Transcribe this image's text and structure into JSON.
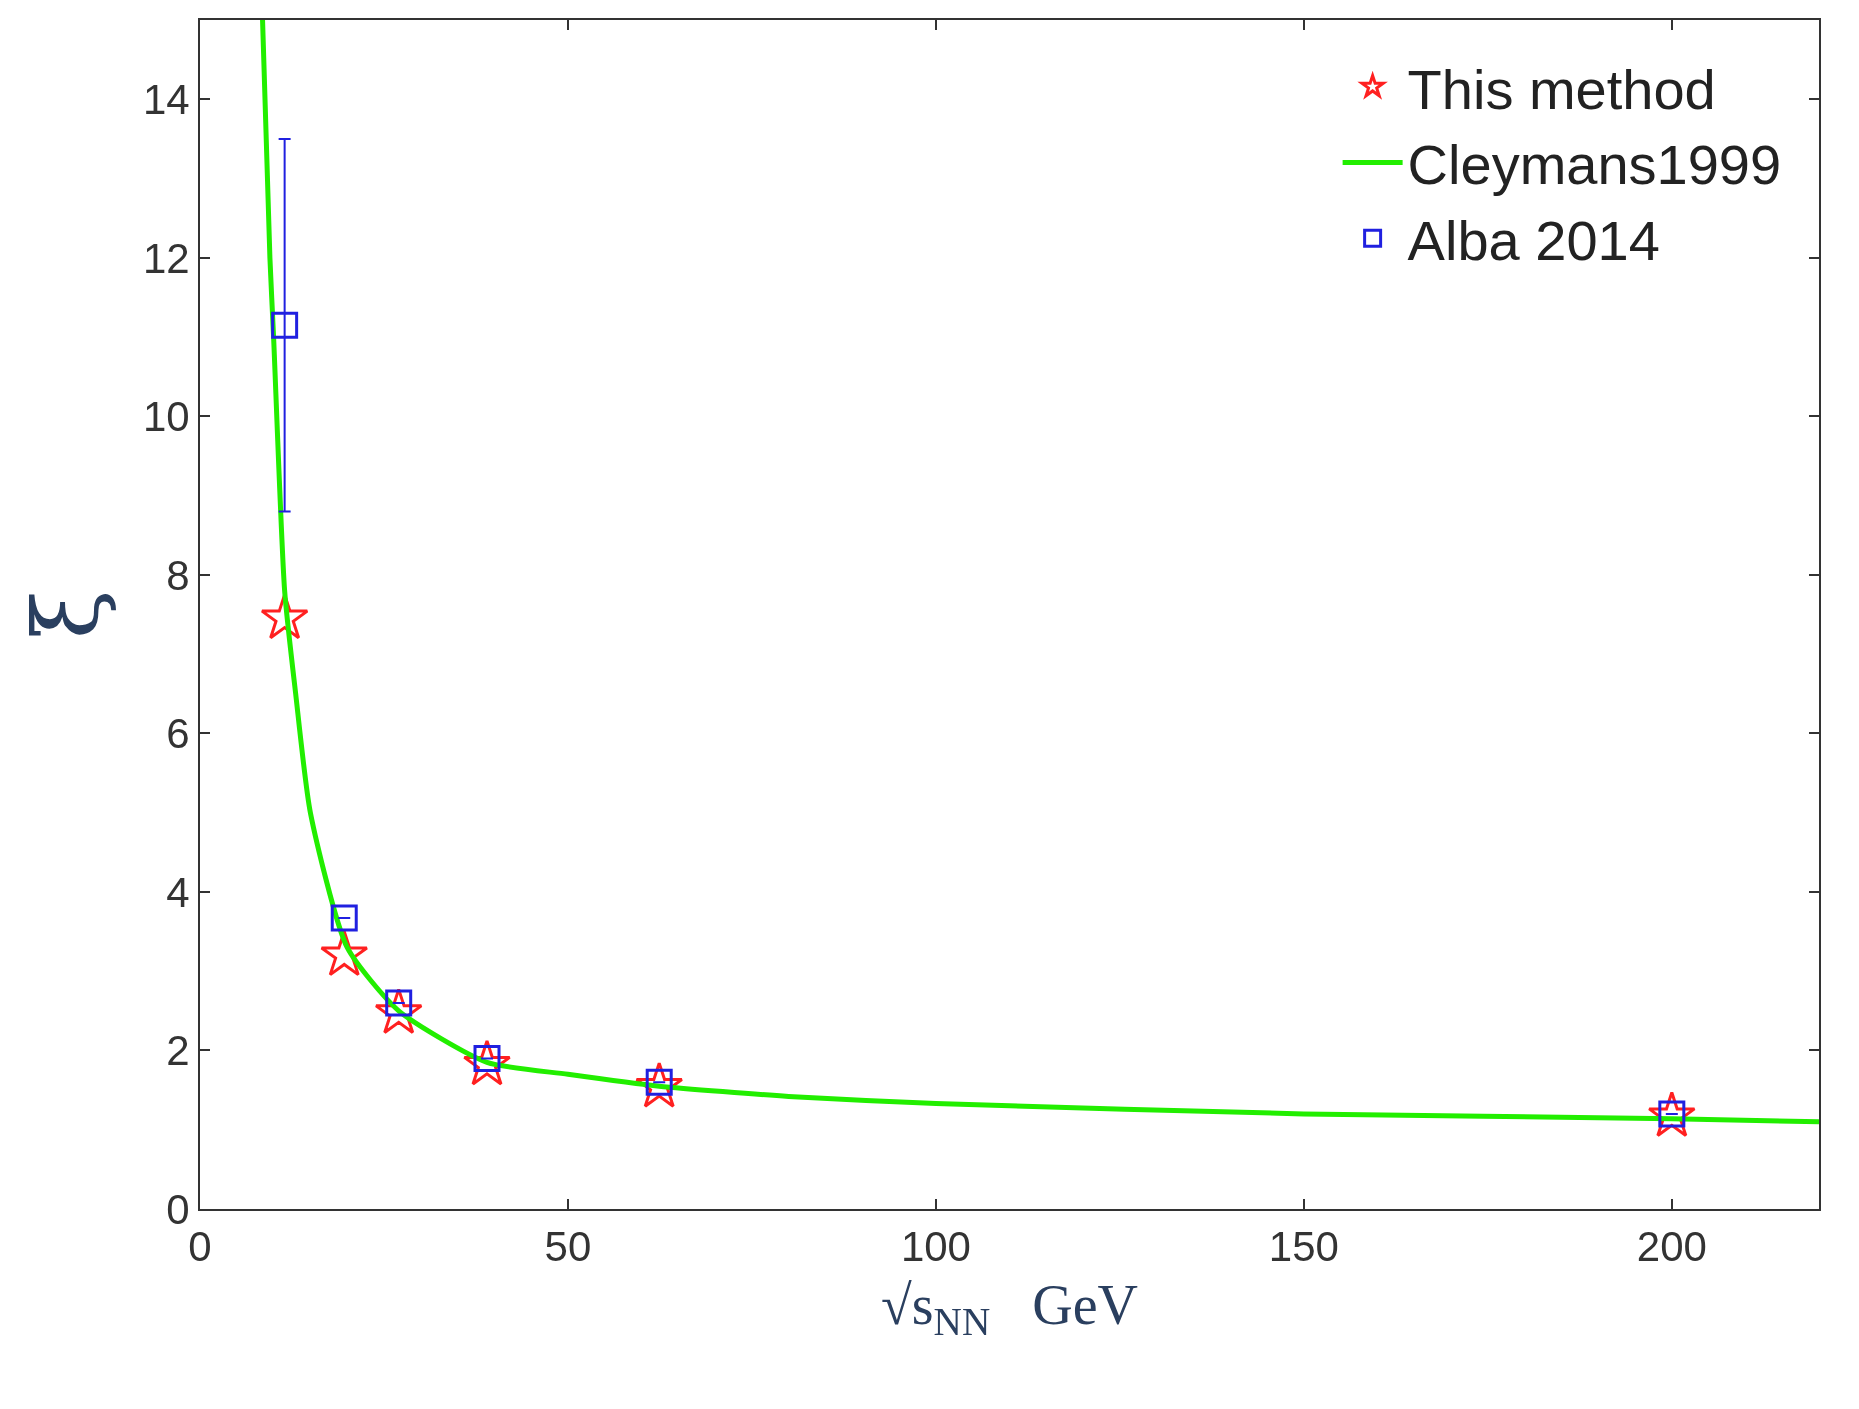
{
  "chart_data": {
    "type": "scatter",
    "xlabel": "√s$_{NN}$   GeV",
    "ylabel": "ξ",
    "xlim": [
      0,
      220
    ],
    "ylim": [
      0,
      15
    ],
    "xticks": [
      0,
      50,
      100,
      150,
      200
    ],
    "yticks": [
      0,
      2,
      4,
      6,
      8,
      10,
      12,
      14
    ],
    "legend": "top right",
    "series": [
      {
        "name": "This method",
        "marker": "star",
        "color": "#ff2020",
        "x": [
          11.5,
          19.6,
          27,
          39,
          62.4,
          200
        ],
        "values": [
          7.45,
          3.2,
          2.47,
          1.82,
          1.54,
          1.17
        ]
      },
      {
        "name": "Cleymans1999",
        "type": "line",
        "color": "#22ee00",
        "line_style": "solid",
        "x": [
          8.5,
          9.5,
          10,
          11.5,
          13,
          15,
          20,
          27,
          39,
          50,
          62.4,
          80,
          100,
          150,
          200,
          220
        ],
        "values": [
          15,
          12,
          11,
          7.8,
          6.5,
          5,
          3.3,
          2.5,
          1.85,
          1.7,
          1.55,
          1.42,
          1.33,
          1.2,
          1.14,
          1.1
        ]
      },
      {
        "name": "Alba 2014",
        "marker": "square",
        "color": "#2020e0",
        "x": [
          11.5,
          19.6,
          27,
          39,
          62.4,
          200
        ],
        "values": [
          11.15,
          3.67,
          2.6,
          1.9,
          1.6,
          1.2
        ],
        "errors": [
          [
            8.8,
            13.5
          ],
          null,
          null,
          null,
          null,
          null
        ]
      }
    ]
  }
}
